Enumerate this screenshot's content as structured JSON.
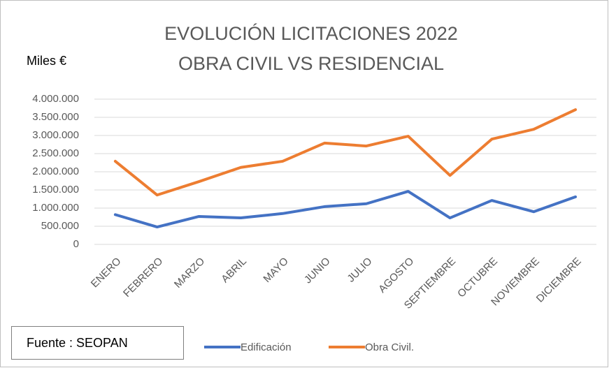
{
  "chart_data": {
    "type": "line",
    "title": "EVOLUCIÓN LICITACIONES 2022",
    "subtitle": "OBRA CIVIL VS RESIDENCIAL",
    "y_label": "Miles €",
    "source": "Fuente : SEOPAN",
    "categories": [
      "ENERO",
      "FEBRERO",
      "MARZO",
      "ABRIL",
      "MAYO",
      "JUNIO",
      "JULIO",
      "AGOSTO",
      "SEPTIEMBRE",
      "OCTUBRE",
      "NOVIEMBRE",
      "DICIEMBRE"
    ],
    "series": [
      {
        "name": "Edificación",
        "color": "#4472c4",
        "values": [
          820000,
          480000,
          770000,
          730000,
          850000,
          1040000,
          1120000,
          1460000,
          730000,
          1210000,
          900000,
          1310000
        ]
      },
      {
        "name": "Obra Civil.",
        "color": "#ed7d31",
        "values": [
          2290000,
          1360000,
          1730000,
          2120000,
          2290000,
          2790000,
          2710000,
          2980000,
          1900000,
          2900000,
          3170000,
          3710000
        ]
      }
    ],
    "ylim": [
      0,
      4000000
    ],
    "yticks": [
      0,
      {
        "value": 500000,
        "label": "500.000"
      },
      {
        "value": 1000000,
        "label": "1.000.000"
      },
      {
        "value": 1500000,
        "label": "1.500.000"
      },
      {
        "value": 2000000,
        "label": "2.000.000"
      },
      {
        "value": 2500000,
        "label": "2.500.000"
      },
      {
        "value": 3000000,
        "label": "3.000.000"
      },
      {
        "value": 3500000,
        "label": "3.500.000"
      },
      {
        "value": 4000000,
        "label": "4.000.000"
      }
    ],
    "grid": true
  }
}
